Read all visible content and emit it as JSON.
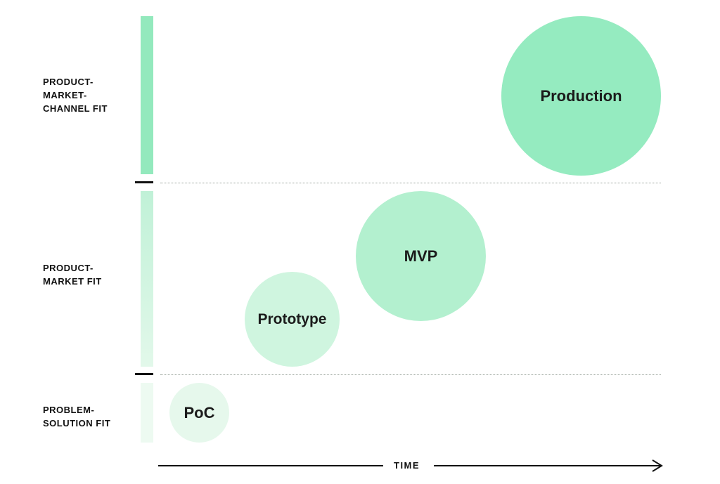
{
  "bands": {
    "top": {
      "lines": [
        "PRODUCT-",
        "MARKET-",
        "CHANNEL FIT"
      ]
    },
    "middle": {
      "lines": [
        "PRODUCT-",
        "MARKET FIT"
      ]
    },
    "bottom": {
      "lines": [
        "PROBLEM-",
        "SOLUTION FIT"
      ]
    }
  },
  "stages": {
    "poc": {
      "label": "PoC",
      "color": "#e6f8ec"
    },
    "prototype": {
      "label": "Prototype",
      "color": "#cff5df"
    },
    "mvp": {
      "label": "MVP",
      "color": "#b3f0cf"
    },
    "production": {
      "label": "Production",
      "color": "#95ebc0"
    }
  },
  "axis": {
    "label": "TIME"
  },
  "colors": {
    "bar_top": "#93e9bd",
    "bar_middle_start": "#c0f1d7",
    "bar_middle_end": "#e2f8ea",
    "bar_bottom": "#edfaf1"
  }
}
